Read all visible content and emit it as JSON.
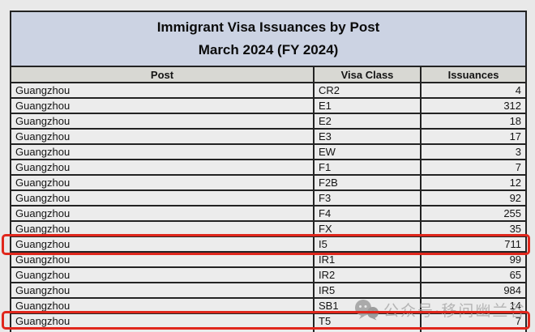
{
  "title": {
    "line1": "Immigrant Visa Issuances by Post",
    "line2": "March 2024 (FY 2024)"
  },
  "columns": [
    "Post",
    "Visa Class",
    "Issuances"
  ],
  "rows": [
    {
      "post": "Guangzhou",
      "visa_class": "CR2",
      "issuances": 4,
      "highlighted": false
    },
    {
      "post": "Guangzhou",
      "visa_class": "E1",
      "issuances": 312,
      "highlighted": false
    },
    {
      "post": "Guangzhou",
      "visa_class": "E2",
      "issuances": 18,
      "highlighted": false
    },
    {
      "post": "Guangzhou",
      "visa_class": "E3",
      "issuances": 17,
      "highlighted": false
    },
    {
      "post": "Guangzhou",
      "visa_class": "EW",
      "issuances": 3,
      "highlighted": false
    },
    {
      "post": "Guangzhou",
      "visa_class": "F1",
      "issuances": 7,
      "highlighted": false
    },
    {
      "post": "Guangzhou",
      "visa_class": "F2B",
      "issuances": 12,
      "highlighted": false
    },
    {
      "post": "Guangzhou",
      "visa_class": "F3",
      "issuances": 92,
      "highlighted": false
    },
    {
      "post": "Guangzhou",
      "visa_class": "F4",
      "issuances": 255,
      "highlighted": false
    },
    {
      "post": "Guangzhou",
      "visa_class": "FX",
      "issuances": 35,
      "highlighted": false
    },
    {
      "post": "Guangzhou",
      "visa_class": "I5",
      "issuances": 711,
      "highlighted": true
    },
    {
      "post": "Guangzhou",
      "visa_class": "IR1",
      "issuances": 99,
      "highlighted": false
    },
    {
      "post": "Guangzhou",
      "visa_class": "IR2",
      "issuances": 65,
      "highlighted": false
    },
    {
      "post": "Guangzhou",
      "visa_class": "IR5",
      "issuances": 984,
      "highlighted": false
    },
    {
      "post": "Guangzhou",
      "visa_class": "SB1",
      "issuances": 14,
      "highlighted": false
    },
    {
      "post": "Guangzhou",
      "visa_class": "T5",
      "issuances": 7,
      "highlighted": true
    }
  ],
  "watermark": {
    "icon": "wechat-icon",
    "text": "公众号·移问幽兰谷"
  },
  "colors": {
    "title_band": "#ccd3e3",
    "header_band": "#d8d8d3",
    "row_background": "#ececec",
    "table_border": "#232323",
    "highlight_red": "#e0271c",
    "page_background": "#e9e9e9",
    "watermark_gray": "#ababab"
  }
}
